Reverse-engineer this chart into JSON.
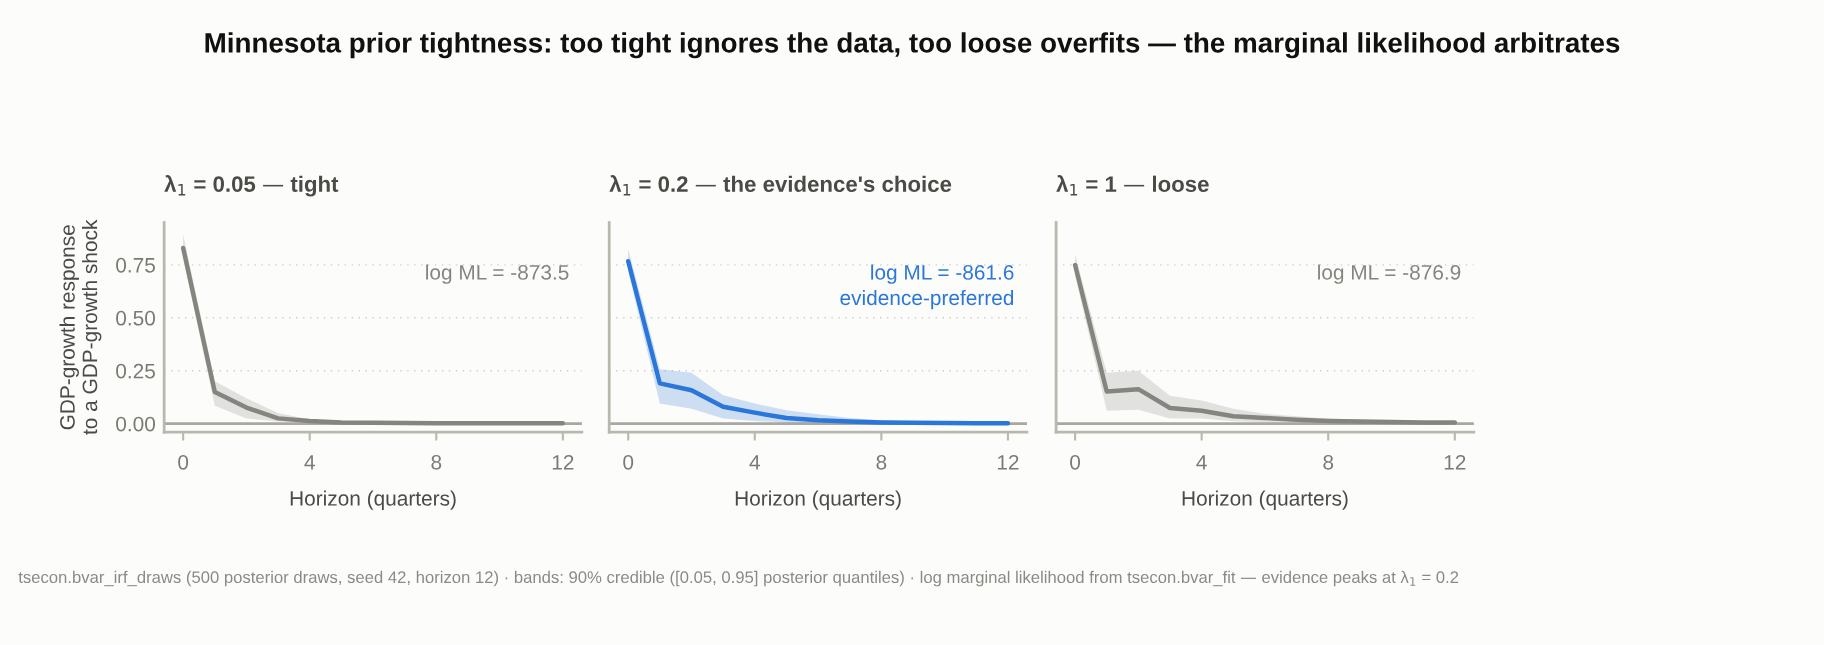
{
  "chart_data": [
    {
      "type": "line",
      "title": "Minnesota prior tightness: too tight ignores the data, too loose overfits — the marginal likelihood arbitrates",
      "subtitle": "λ$_{1}$ = 0.05 — tight",
      "xlabel": "Horizon (quarters)",
      "ylabel": "GDP-growth response\nto a GDP-growth shock",
      "x": [
        0,
        1,
        2,
        3,
        4,
        5,
        6,
        7,
        8,
        9,
        10,
        11,
        12
      ],
      "series": [
        {
          "color": "#85847f",
          "values": [
            0.83,
            0.15,
            0.076,
            0.025,
            0.013,
            0.006,
            0.004,
            0.003,
            0.002,
            0.002,
            0.002,
            0.002,
            0.002
          ],
          "lower": [
            0.78,
            0.085,
            0.025,
            0.01,
            0.005,
            0.002,
            0.001,
            0.001,
            0.001,
            0.001,
            0.001,
            0.001,
            0.001
          ],
          "upper": [
            0.895,
            0.2,
            0.12,
            0.05,
            0.02,
            0.01,
            0.007,
            0.005,
            0.004,
            0.003,
            0.003,
            0.003,
            0.003
          ]
        }
      ],
      "xlim": [
        -0.6,
        12.6
      ],
      "ylim": [
        -0.04,
        0.95
      ],
      "xticks": [
        0,
        4,
        8,
        12
      ],
      "yticks": [
        {
          "value": 0,
          "label": "0.00"
        },
        0.25,
        {
          "value": 0.5,
          "label": "0.50"
        },
        0.75
      ],
      "grid": "y",
      "ref_lines": [
        {
          "axis": "y",
          "value": 0,
          "color": "#a8a7a0"
        }
      ],
      "annotations": [
        "log ML = -873.5",
        "tsecon.bvar_irf_draws (500 posterior draws, seed 42, horizon 12) · bands: 90% credible ([0.05, 0.95] posterior quantiles) · log marginal likelihood from tsecon.bvar_fit — evidence peaks at λ$_{1}$ = 0.2"
      ]
    },
    {
      "type": "line",
      "subtitle": "λ$_{1}$ = 0.2 — the evidence's choice",
      "xlabel": "Horizon (quarters)",
      "x": [
        0,
        1,
        2,
        3,
        4,
        5,
        6,
        7,
        8,
        9,
        10,
        11,
        12
      ],
      "series": [
        {
          "color": "#2a77d9",
          "values": [
            0.767,
            0.19,
            0.158,
            0.08,
            0.052,
            0.027,
            0.016,
            0.01,
            0.006,
            0.004,
            0.003,
            0.002,
            0.002
          ],
          "lower": [
            0.72,
            0.095,
            0.071,
            0.024,
            0.013,
            0.005,
            0.003,
            0.002,
            0.001,
            0.001,
            0.001,
            0.001,
            0.001
          ],
          "upper": [
            0.825,
            0.257,
            0.24,
            0.134,
            0.095,
            0.063,
            0.044,
            0.027,
            0.016,
            0.011,
            0.008,
            0.006,
            0.005
          ]
        }
      ],
      "xlim": [
        -0.6,
        12.6
      ],
      "ylim": [
        -0.04,
        0.95
      ],
      "xticks": [
        0,
        4,
        8,
        12
      ],
      "yticks": [
        0,
        0.25,
        0.5,
        0.75
      ],
      "tick_labels": "x",
      "grid": "y",
      "ref_lines": [
        {
          "axis": "y",
          "value": 0,
          "color": "#a8a7a0"
        }
      ],
      "annotations": [
        "log ML = -861.6\nevidence-preferred"
      ]
    },
    {
      "type": "line",
      "subtitle": "λ$_{1}$ = 1 — loose",
      "xlabel": "Horizon (quarters)",
      "x": [
        0,
        1,
        2,
        3,
        4,
        5,
        6,
        7,
        8,
        9,
        10,
        11,
        12
      ],
      "series": [
        {
          "color": "#85847f",
          "values": [
            0.749,
            0.152,
            0.163,
            0.074,
            0.061,
            0.035,
            0.027,
            0.019,
            0.013,
            0.01,
            0.008,
            0.006,
            0.006
          ],
          "lower": [
            0.7,
            0.061,
            0.066,
            0.024,
            0.024,
            0.011,
            0.007,
            0.005,
            0.003,
            0.002,
            0.002,
            0.002,
            0.002
          ],
          "upper": [
            0.8,
            0.24,
            0.25,
            0.132,
            0.11,
            0.07,
            0.047,
            0.035,
            0.024,
            0.018,
            0.014,
            0.012,
            0.01
          ]
        }
      ],
      "xlim": [
        -0.6,
        12.6
      ],
      "ylim": [
        -0.04,
        0.95
      ],
      "xticks": [
        0,
        4,
        8,
        12
      ],
      "yticks": [
        0,
        0.25,
        0.5,
        0.75
      ],
      "tick_labels": "x",
      "grid": "y",
      "ref_lines": [
        {
          "axis": "y",
          "value": 0,
          "color": "#a8a7a0"
        }
      ],
      "annotations": [
        "log ML = -876.9"
      ]
    }
  ]
}
